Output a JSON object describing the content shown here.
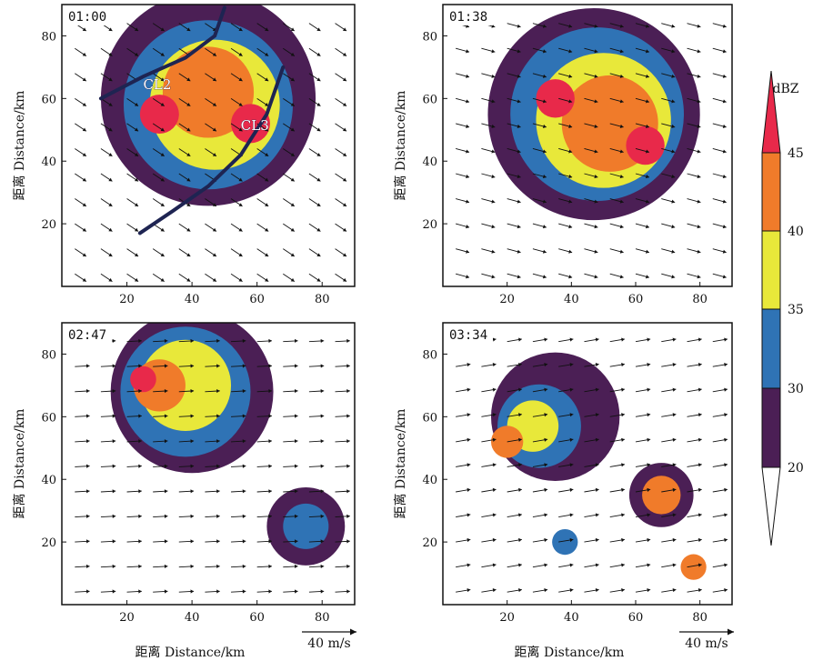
{
  "figure": {
    "colorbar_unit": "dBZ",
    "scale_vector_label": "40 m/s",
    "palette": {
      "20": "#4b1f55",
      "30": "#2f73b5",
      "35": "#e8e83a",
      "40": "#f07b2a",
      "45": "#e8294a",
      "grid": "#ffffff",
      "frame": "#111111",
      "arrow": "#111111",
      "line": "#1e2452"
    }
  },
  "chart_data": [
    {
      "type": "heatmap",
      "timestamp": "01:00",
      "xlabel": "",
      "ylabel": "距离  Distance/km",
      "xlim": [
        0,
        90
      ],
      "ylim": [
        0,
        90
      ],
      "xticks": [
        "20",
        "40",
        "60",
        "80"
      ],
      "yticks": [
        "20",
        "40",
        "60",
        "80"
      ],
      "annotations": [
        {
          "text": "CL2",
          "x": 25,
          "y": 63
        },
        {
          "text": "CL3",
          "x": 55,
          "y": 50
        }
      ],
      "lines": [
        [
          [
            12,
            60
          ],
          [
            25,
            67
          ],
          [
            38,
            73
          ],
          [
            47,
            80
          ],
          [
            50,
            89
          ]
        ],
        [
          [
            24,
            17
          ],
          [
            34,
            24
          ],
          [
            45,
            32
          ],
          [
            55,
            42
          ],
          [
            63,
            55
          ],
          [
            68,
            70
          ]
        ]
      ],
      "cells": [
        {
          "x": 45,
          "y": 60,
          "r": 33,
          "dbz": 20
        },
        {
          "x": 45,
          "y": 58,
          "r": 26,
          "dbz": 30
        },
        {
          "x": 47,
          "y": 58,
          "r": 20,
          "dbz": 35
        },
        {
          "x": 45,
          "y": 62,
          "r": 14,
          "dbz": 40
        },
        {
          "x": 58,
          "y": 52,
          "r": 6,
          "dbz": 45
        },
        {
          "x": 30,
          "y": 55,
          "r": 6,
          "dbz": 45
        }
      ],
      "wind": {
        "u": 12,
        "v": -8
      }
    },
    {
      "type": "heatmap",
      "timestamp": "01:38",
      "xlabel": "",
      "ylabel": "距离  Distance/km",
      "xlim": [
        0,
        90
      ],
      "ylim": [
        0,
        90
      ],
      "xticks": [
        "20",
        "40",
        "60",
        "80"
      ],
      "yticks": [
        "20",
        "40",
        "60",
        "80"
      ],
      "annotations": [],
      "lines": [],
      "cells": [
        {
          "x": 47,
          "y": 55,
          "r": 33,
          "dbz": 20
        },
        {
          "x": 48,
          "y": 55,
          "r": 27,
          "dbz": 30
        },
        {
          "x": 50,
          "y": 53,
          "r": 21,
          "dbz": 35
        },
        {
          "x": 52,
          "y": 52,
          "r": 15,
          "dbz": 40
        },
        {
          "x": 63,
          "y": 45,
          "r": 6,
          "dbz": 45
        },
        {
          "x": 35,
          "y": 60,
          "r": 6,
          "dbz": 45
        }
      ],
      "wind": {
        "u": 15,
        "v": -4
      }
    },
    {
      "type": "heatmap",
      "timestamp": "02:47",
      "xlabel": "距离  Distance/km",
      "ylabel": "距离  Distance/km",
      "xlim": [
        0,
        90
      ],
      "ylim": [
        0,
        90
      ],
      "xticks": [
        "20",
        "40",
        "60",
        "80"
      ],
      "yticks": [
        "20",
        "40",
        "60",
        "80"
      ],
      "annotations": [],
      "lines": [],
      "cells": [
        {
          "x": 40,
          "y": 68,
          "r": 25,
          "dbz": 20
        },
        {
          "x": 38,
          "y": 68,
          "r": 20,
          "dbz": 30
        },
        {
          "x": 38,
          "y": 70,
          "r": 14,
          "dbz": 35
        },
        {
          "x": 30,
          "y": 70,
          "r": 8,
          "dbz": 40
        },
        {
          "x": 25,
          "y": 72,
          "r": 4,
          "dbz": 45
        },
        {
          "x": 75,
          "y": 25,
          "r": 12,
          "dbz": 20
        },
        {
          "x": 75,
          "y": 25,
          "r": 7,
          "dbz": 30
        }
      ],
      "wind": {
        "u": 18,
        "v": 1
      }
    },
    {
      "type": "heatmap",
      "timestamp": "03:34",
      "xlabel": "距离  Distance/km",
      "ylabel": "距离  Distance/km",
      "xlim": [
        0,
        90
      ],
      "ylim": [
        0,
        90
      ],
      "xticks": [
        "20",
        "40",
        "60",
        "80"
      ],
      "yticks": [
        "20",
        "40",
        "60",
        "80"
      ],
      "annotations": [],
      "lines": [],
      "cells": [
        {
          "x": 35,
          "y": 60,
          "r": 20,
          "dbz": 20
        },
        {
          "x": 30,
          "y": 57,
          "r": 13,
          "dbz": 30
        },
        {
          "x": 28,
          "y": 57,
          "r": 8,
          "dbz": 35
        },
        {
          "x": 20,
          "y": 52,
          "r": 5,
          "dbz": 40
        },
        {
          "x": 68,
          "y": 35,
          "r": 10,
          "dbz": 20
        },
        {
          "x": 68,
          "y": 35,
          "r": 6,
          "dbz": 40
        },
        {
          "x": 38,
          "y": 20,
          "r": 4,
          "dbz": 30
        },
        {
          "x": 78,
          "y": 12,
          "r": 4,
          "dbz": 40
        }
      ],
      "wind": {
        "u": 18,
        "v": 3
      }
    }
  ],
  "colorbar": {
    "levels": [
      20,
      30,
      35,
      40,
      45
    ],
    "labels": [
      "20",
      "30",
      "35",
      "40",
      "45"
    ]
  }
}
